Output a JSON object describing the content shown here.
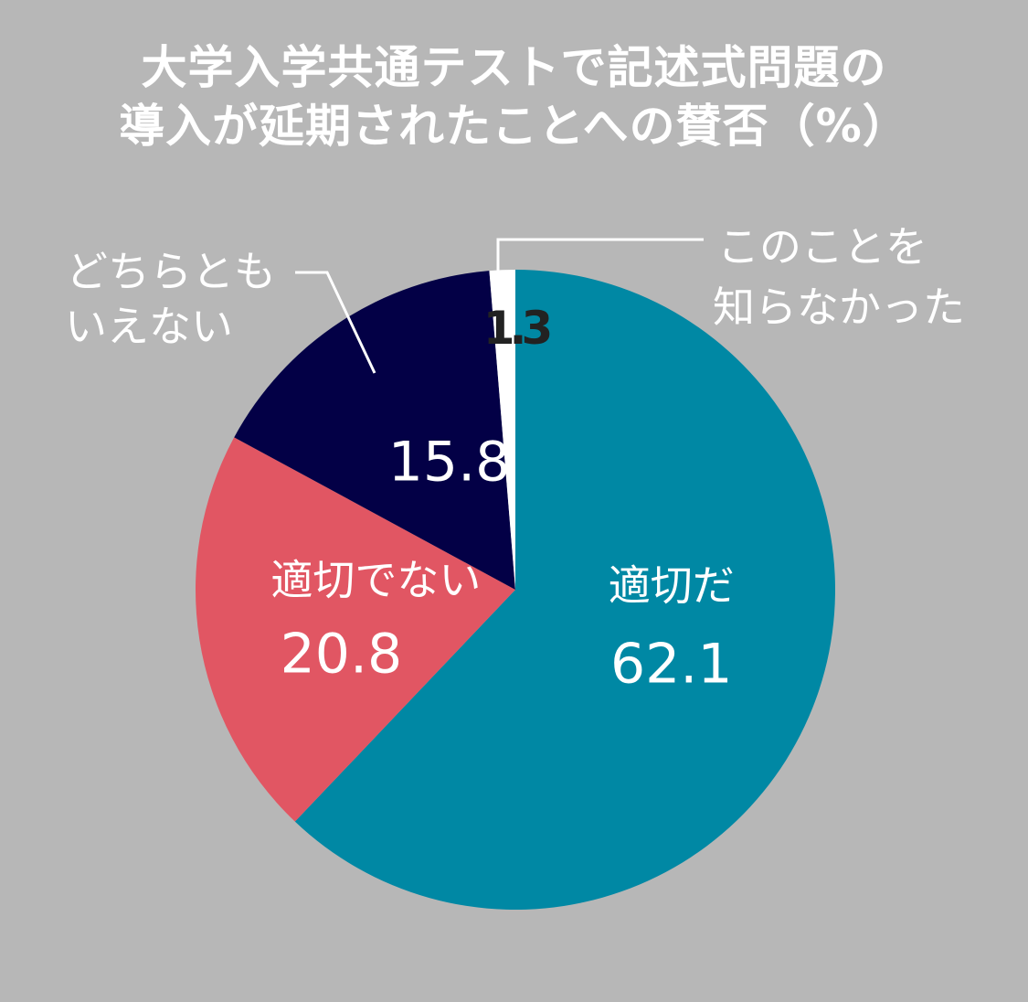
{
  "chart_data": {
    "type": "pie",
    "title_lines": [
      "大学入学共通テストで記述式問題の",
      "導入が延期されたことへの賛否（%）"
    ],
    "slices": [
      {
        "label": "適切だ",
        "value": 62.1,
        "value_text": "62.1",
        "color": "#0088a4",
        "text_color": "#ffffff"
      },
      {
        "label": "適切でない",
        "value": 20.8,
        "value_text": "20.8",
        "color": "#e15663",
        "text_color": "#ffffff"
      },
      {
        "label": "どちらとも\nいえない",
        "value": 15.8,
        "value_text": "15.8",
        "color": "#030046",
        "text_color": "#ffffff"
      },
      {
        "label": "このことを\n知らなかった",
        "value": 1.3,
        "value_text": "1.3",
        "color": "#ffffff",
        "text_color": "#222222"
      }
    ],
    "start": "12 o'clock",
    "direction": "clockwise"
  },
  "colors": {
    "background": "#b7b7b7",
    "title": "#ffffff",
    "callout_text": "#ffffff",
    "leader_line": "#ffffff"
  }
}
